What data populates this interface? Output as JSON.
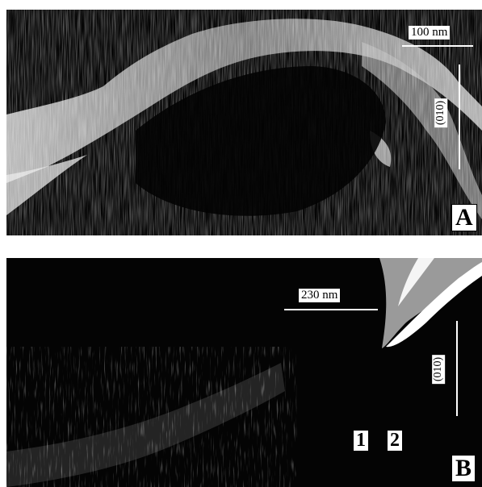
{
  "panels": [
    {
      "letter": "A",
      "scale": "100 nm",
      "direction": "(010)"
    },
    {
      "letter": "B",
      "scale": "230 nm",
      "direction": "(010)",
      "markers": [
        "1",
        "2"
      ]
    }
  ]
}
